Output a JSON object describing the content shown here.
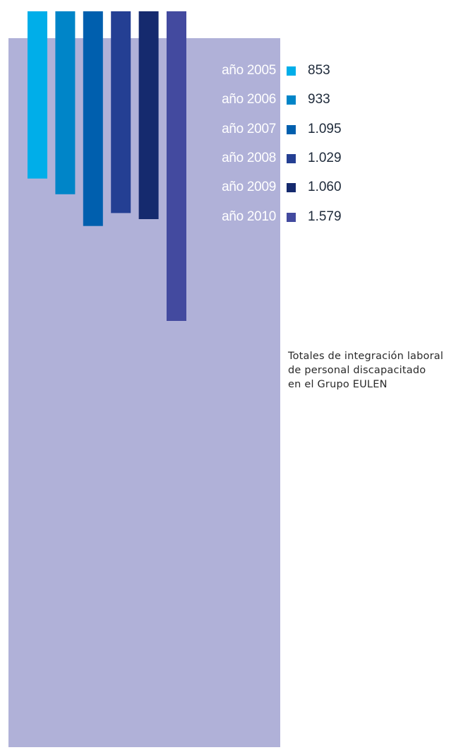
{
  "chart_data": {
    "type": "bar",
    "orientation": "vertical-downward",
    "categories": [
      "año 2005",
      "año 2006",
      "año 2007",
      "año 2008",
      "año 2009",
      "año 2010"
    ],
    "values": [
      853,
      933,
      1095,
      1029,
      1060,
      1579
    ],
    "value_labels": [
      "853",
      "933",
      "1.095",
      "1.029",
      "1.060",
      "1.579"
    ],
    "colors": [
      "#00aee9",
      "#0085c8",
      "#005fae",
      "#243f93",
      "#152a6e",
      "#434a9f"
    ],
    "legend_position": "right",
    "grid": false,
    "caption_lines": [
      "Totales de integración laboral",
      "de personal discapacitado",
      "en el Grupo EULEN"
    ]
  },
  "colors": {
    "panel": "#b0b1d8",
    "legend_year_text": "#ffffff",
    "legend_value_text": "#1e2a3a"
  }
}
